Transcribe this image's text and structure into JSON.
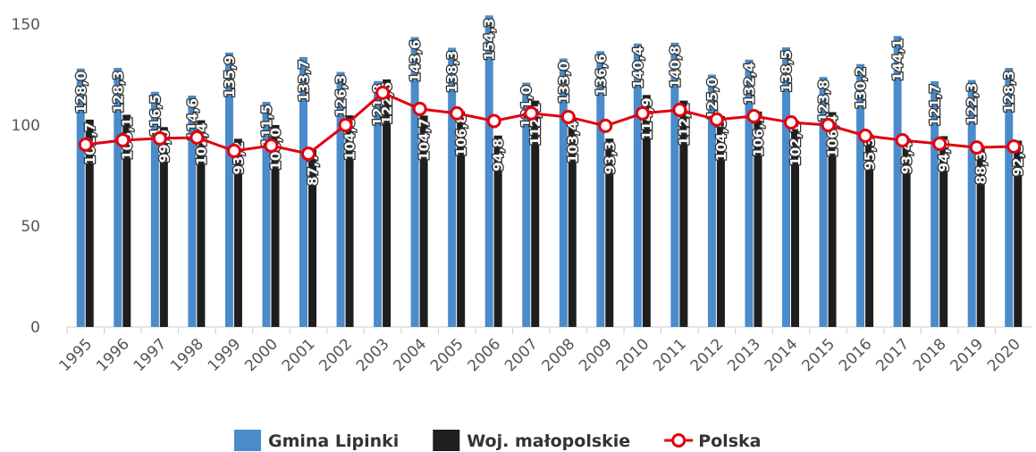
{
  "chart_data": {
    "type": "bar_line",
    "categories": [
      "1995",
      "1996",
      "1997",
      "1998",
      "1999",
      "2000",
      "2001",
      "2002",
      "2003",
      "2004",
      "2005",
      "2006",
      "2007",
      "2008",
      "2009",
      "2010",
      "2011",
      "2012",
      "2013",
      "2014",
      "2015",
      "2016",
      "2017",
      "2018",
      "2019",
      "2020"
    ],
    "series": [
      {
        "name": "Gmina Lipinki",
        "type": "bar",
        "color": "#4a8bcb",
        "values": [
          128.0,
          128.3,
          116.5,
          114.6,
          135.9,
          111.5,
          133.7,
          126.3,
          121.8,
          143.6,
          138.3,
          154.3,
          121.0,
          133.0,
          136.6,
          140.4,
          140.8,
          125.0,
          132.4,
          138.5,
          123.8,
          130.2,
          144.1,
          121.7,
          122.3,
          128.3
        ],
        "value_labels": [
          "128,0",
          "128,3",
          "116,5",
          "114,6",
          "135,9",
          "111,5",
          "133,7",
          "126,3",
          "121,8",
          "143,6",
          "138,3",
          "154,3",
          "121,0",
          "133,0",
          "136,6",
          "140,4",
          "140,8",
          "125,0",
          "132,4",
          "138,5",
          "123,8",
          "130,2",
          "144,1",
          "121,7",
          "122,3",
          "128,3"
        ]
      },
      {
        "name": "Woj. małopolskie",
        "type": "bar",
        "color": "#1e1e1e",
        "values": [
          102.7,
          105.1,
          99.0,
          102.4,
          93.2,
          100.0,
          87.7,
          104.8,
          122.6,
          104.7,
          106.8,
          94.8,
          112.1,
          103.4,
          93.3,
          114.9,
          112.1,
          104.5,
          106.7,
          102.1,
          106.4,
          95.3,
          93.4,
          94.5,
          88.3,
          92.3
        ],
        "value_labels": [
          "102,7",
          "105,1",
          "99,0",
          "102,4",
          "93,2",
          "100,0",
          "87,7",
          "104,8",
          "122,6",
          "104,7",
          "106,8",
          "94,8",
          "112,1",
          "103,4",
          "93,3",
          "114,9",
          "112,1",
          "104,5",
          "106,7",
          "102,1",
          "106,4",
          "95,3",
          "93,4",
          "94,5",
          "88,3",
          "92,3"
        ]
      },
      {
        "name": "Polska",
        "type": "line",
        "color": "#e3000f",
        "values": [
          90.3,
          92.5,
          93.4,
          93.8,
          87.2,
          89.8,
          85.8,
          100.0,
          116.0,
          108.0,
          105.8,
          102.0,
          105.8,
          104.0,
          99.6,
          105.8,
          107.5,
          102.7,
          104.4,
          101.3,
          100.0,
          94.7,
          92.5,
          90.7,
          88.9,
          89.4
        ]
      }
    ],
    "ylim": [
      0,
      150
    ],
    "yticks": [
      0,
      50,
      100,
      150
    ],
    "grid": false
  }
}
